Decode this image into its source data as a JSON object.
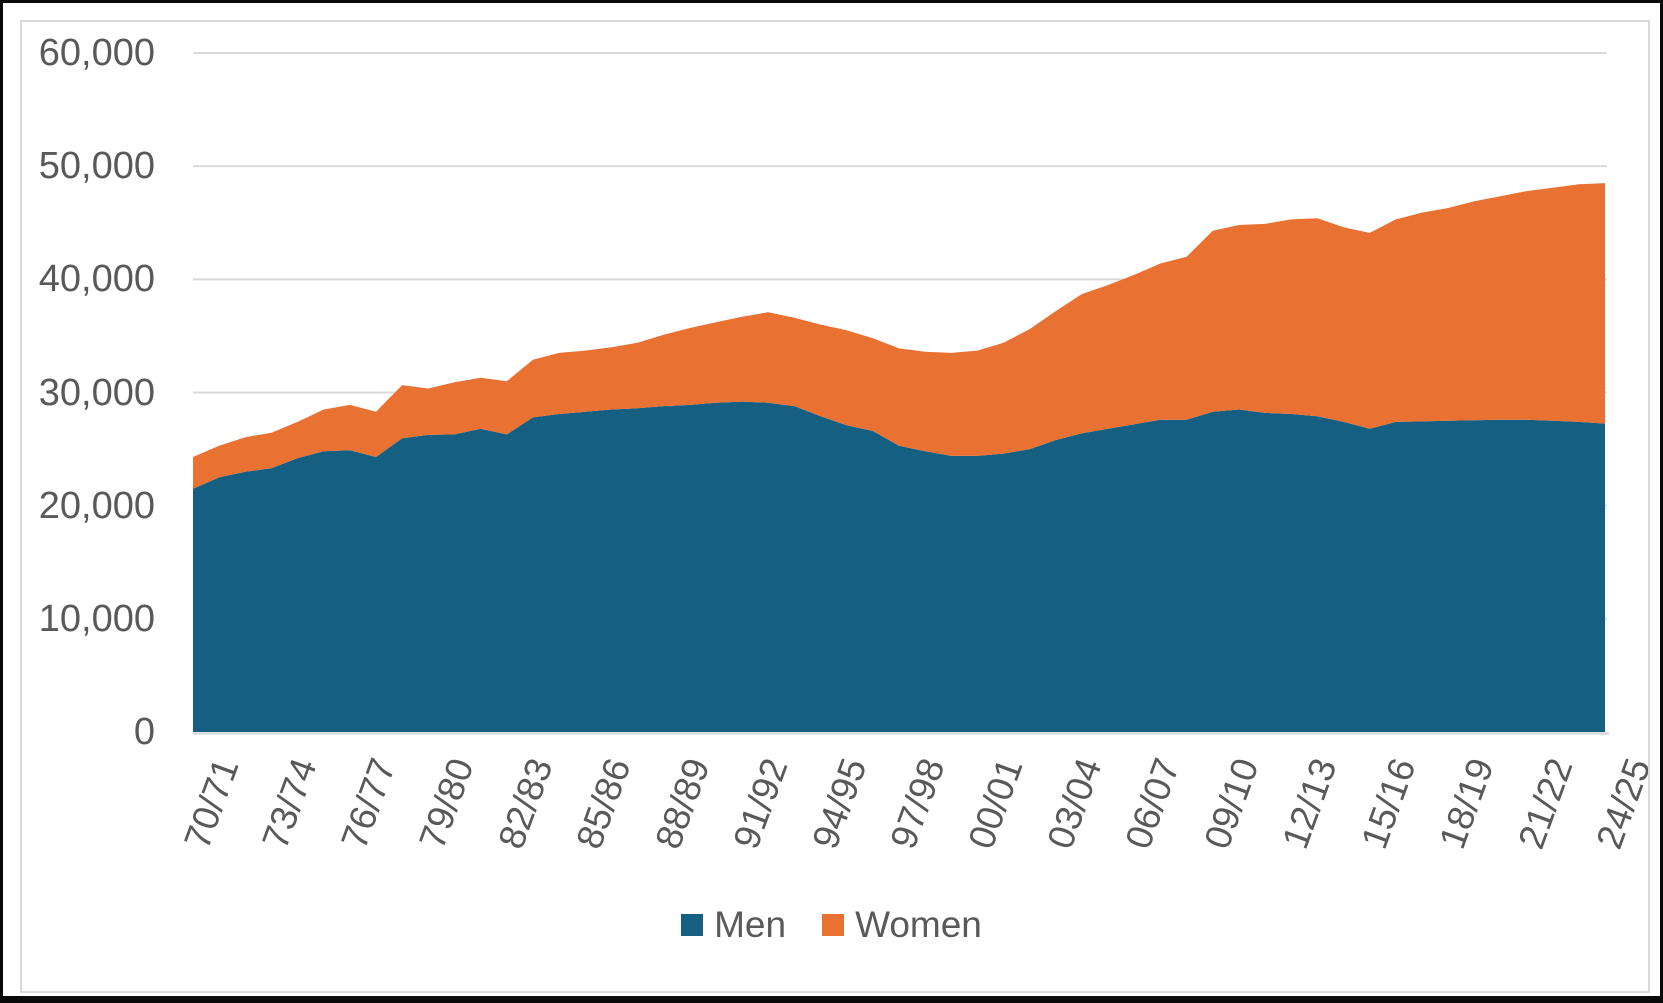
{
  "chart_data": {
    "type": "area",
    "stacked": true,
    "title": "",
    "categories": [
      "70/71",
      "71/72",
      "72/73",
      "73/74",
      "74/75",
      "75/76",
      "76/77",
      "77/78",
      "78/79",
      "79/80",
      "80/81",
      "81/82",
      "82/83",
      "83/84",
      "84/85",
      "85/86",
      "86/87",
      "87/88",
      "88/89",
      "89/90",
      "90/91",
      "91/92",
      "92/93",
      "93/94",
      "94/95",
      "95/96",
      "96/97",
      "97/98",
      "98/99",
      "99/00",
      "00/01",
      "01/02",
      "02/03",
      "03/04",
      "04/05",
      "05/06",
      "06/07",
      "07/08",
      "08/09",
      "09/10",
      "10/11",
      "11/12",
      "12/13",
      "13/14",
      "14/15",
      "15/16",
      "16/17",
      "17/18",
      "18/19",
      "19/20",
      "20/21",
      "21/22",
      "22/23",
      "23/24",
      "24/25"
    ],
    "series": [
      {
        "name": "Men",
        "color": "#156082",
        "values": [
          21500,
          22500,
          23000,
          23300,
          24200,
          24800,
          24900,
          24300,
          25950,
          26250,
          26300,
          26800,
          26300,
          27800,
          28100,
          28300,
          28500,
          28600,
          28800,
          28900,
          29100,
          29200,
          29100,
          28800,
          27900,
          27100,
          26600,
          25300,
          24800,
          24400,
          24400,
          24600,
          25000,
          25800,
          26400,
          26800,
          27200,
          27600,
          27600,
          28300,
          28500,
          28200,
          28100,
          27900,
          27400,
          26800,
          27400,
          27450,
          27500,
          27550,
          27600,
          27600,
          27500,
          27400,
          27250
        ]
      },
      {
        "name": "Women",
        "color": "#E97132",
        "values": [
          2800,
          2800,
          3050,
          3150,
          3200,
          3700,
          4000,
          4000,
          4700,
          4100,
          4600,
          4500,
          4700,
          5100,
          5400,
          5400,
          5500,
          5800,
          6300,
          6800,
          7100,
          7500,
          8000,
          7800,
          8100,
          8400,
          8200,
          8600,
          8800,
          9100,
          9300,
          9800,
          10600,
          11400,
          12300,
          12700,
          13200,
          13800,
          14400,
          16000,
          16300,
          16700,
          17200,
          17500,
          17200,
          17300,
          17900,
          18450,
          18800,
          19350,
          19750,
          20200,
          20600,
          21000,
          21250
        ]
      }
    ],
    "y_axis": {
      "min": 0,
      "max": 60000,
      "tick_interval": 10000,
      "tick_labels": [
        "0",
        "10,000",
        "20,000",
        "30,000",
        "40,000",
        "50,000",
        "60,000"
      ]
    },
    "x_axis": {
      "labels_shown_every": 3,
      "label_rotation_deg": -70
    },
    "legend": {
      "position": "bottom",
      "entries": [
        "Men",
        "Women"
      ]
    },
    "grid": {
      "horizontal": true,
      "color": "#D9D9D9"
    },
    "text_color": "#595959",
    "background": "#FFFFFF",
    "frame_color": "#0A0A0A"
  }
}
